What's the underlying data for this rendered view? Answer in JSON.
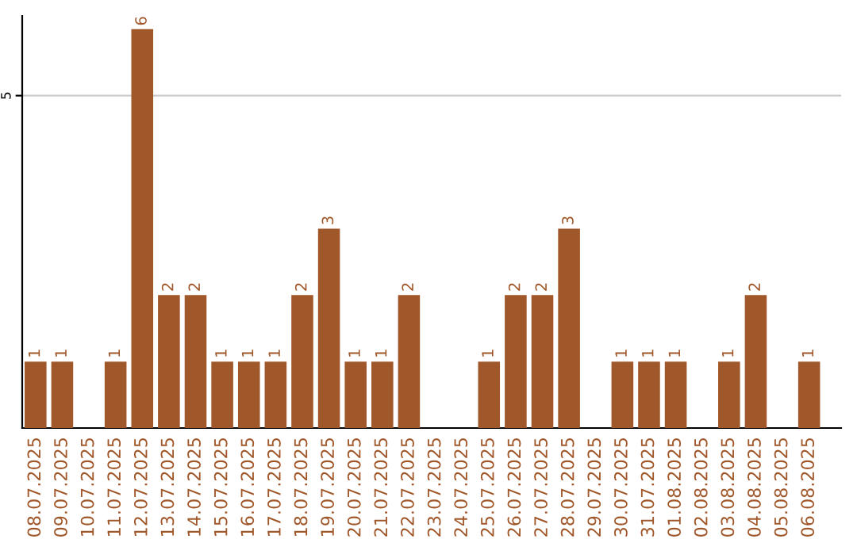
{
  "chart_data": {
    "type": "bar",
    "categories": [
      "08.07.2025",
      "09.07.2025",
      "10.07.2025",
      "11.07.2025",
      "12.07.2025",
      "13.07.2025",
      "14.07.2025",
      "15.07.2025",
      "16.07.2025",
      "17.07.2025",
      "18.07.2025",
      "19.07.2025",
      "20.07.2025",
      "21.07.2025",
      "22.07.2025",
      "23.07.2025",
      "24.07.2025",
      "25.07.2025",
      "26.07.2025",
      "27.07.2025",
      "28.07.2025",
      "29.07.2025",
      "30.07.2025",
      "31.07.2025",
      "01.08.2025",
      "02.08.2025",
      "03.08.2025",
      "04.08.2025",
      "05.08.2025",
      "06.08.2025"
    ],
    "values": [
      1,
      1,
      null,
      1,
      6,
      2,
      2,
      1,
      1,
      1,
      2,
      3,
      1,
      1,
      2,
      null,
      null,
      1,
      2,
      2,
      3,
      null,
      1,
      1,
      1,
      null,
      1,
      2,
      null,
      1
    ],
    "color": "#a0572a",
    "ylim": [
      0,
      6.2
    ],
    "yticks": [
      5
    ],
    "grid": "y",
    "data_labels": true
  }
}
